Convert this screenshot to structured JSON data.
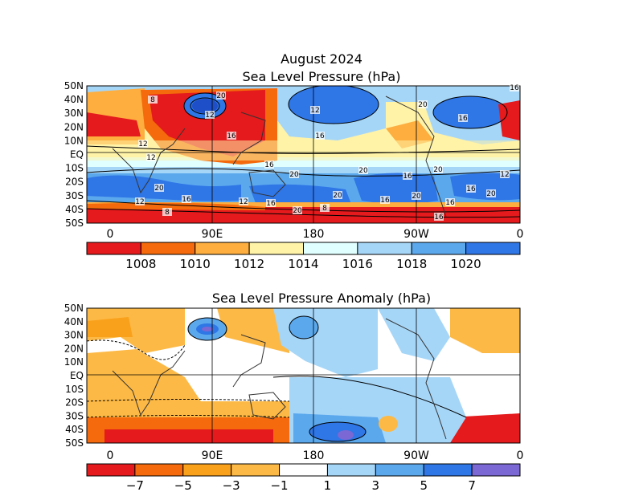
{
  "top_map": {
    "title_line1": "August 2024",
    "title_line2": "Sea Level Pressure (hPa)",
    "lat_labels": [
      "50N",
      "40N",
      "30N",
      "20N",
      "10N",
      "EQ",
      "10S",
      "20S",
      "30S",
      "40S",
      "50S"
    ],
    "lon_labels": [
      "0",
      "90E",
      "180",
      "90W",
      "0"
    ],
    "contour_labels": [
      "8",
      "12",
      "12",
      "8",
      "12",
      "16",
      "20",
      "16",
      "20",
      "12",
      "16",
      "20",
      "12",
      "16",
      "8",
      "12",
      "20",
      "16",
      "20",
      "16",
      "20",
      "16",
      "12",
      "16",
      "20",
      "20",
      "16",
      "20",
      "16",
      "16",
      "20",
      "16"
    ],
    "colorbar": {
      "colors": [
        "#e41a1c",
        "#f46a0c",
        "#fdae3f",
        "#fff3a8",
        "#e0ffff",
        "#a6d6f7",
        "#5ba8ed",
        "#2f76e6"
      ],
      "labels": [
        "1008",
        "1010",
        "1012",
        "1014",
        "1016",
        "1018",
        "1020"
      ]
    },
    "colors": {
      "low_strong": "#d7191c",
      "low_mid": "#f46a0c",
      "low_light": "#fdae3f",
      "neutral_low": "#fff3a8",
      "neutral_high": "#e0ffff",
      "high_light": "#a6d6f7",
      "high_mid": "#5ba8ed",
      "high_strong": "#2f76e6"
    }
  },
  "bottom_map": {
    "title": "Sea Level Pressure Anomaly (hPa)",
    "lat_labels": [
      "50N",
      "40N",
      "30N",
      "20N",
      "10N",
      "EQ",
      "10S",
      "20S",
      "30S",
      "40S",
      "50S"
    ],
    "lon_labels": [
      "0",
      "90E",
      "180",
      "90W",
      "0"
    ],
    "colorbar": {
      "colors": [
        "#e41a1c",
        "#f46a0c",
        "#f9a11b",
        "#fdb945",
        "#ffffff",
        "#a6d6f7",
        "#5ba8ed",
        "#2f76e6",
        "#7b68d4"
      ],
      "labels": [
        "−7",
        "−5",
        "−3",
        "−1",
        "1",
        "3",
        "5",
        "7"
      ]
    }
  }
}
